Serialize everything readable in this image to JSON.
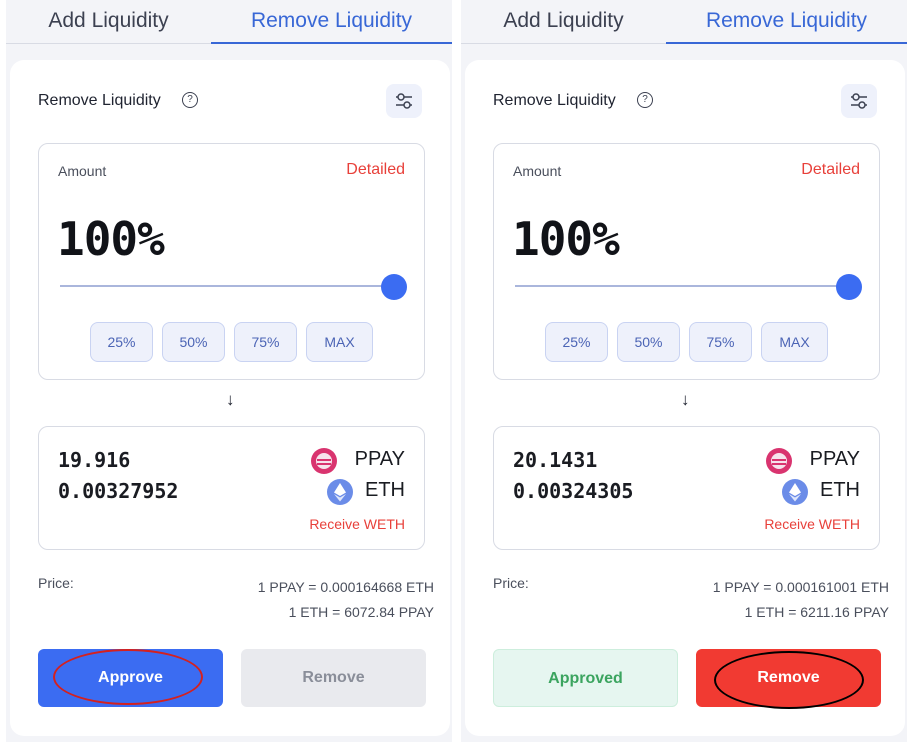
{
  "panels": [
    {
      "tabs": {
        "add": "Add Liquidity",
        "remove": "Remove Liquidity"
      },
      "title": "Remove Liquidity",
      "help_icon_glyph": "?",
      "amount": {
        "label": "Amount",
        "detailed": "Detailed",
        "percent": "100%",
        "slider_value": 1.0,
        "presets": [
          "25%",
          "50%",
          "75%",
          "MAX"
        ]
      },
      "arrow": "↓",
      "receive": {
        "amount_1": "19.916",
        "token_1": "PPAY",
        "amount_2": "0.00327952",
        "token_2": "ETH",
        "receive_weth": "Receive WETH"
      },
      "price": {
        "label": "Price:",
        "line_1": "1 PPAY = 0.000164668 ETH",
        "line_2": "1 ETH = 6072.84 PPAY"
      },
      "buttons": {
        "primary": "Approve",
        "secondary": "Remove"
      },
      "highlight_color": "#d4211f"
    },
    {
      "tabs": {
        "add": "Add Liquidity",
        "remove": "Remove Liquidity"
      },
      "title": "Remove Liquidity",
      "help_icon_glyph": "?",
      "amount": {
        "label": "Amount",
        "detailed": "Detailed",
        "percent": "100%",
        "slider_value": 1.0,
        "presets": [
          "25%",
          "50%",
          "75%",
          "MAX"
        ]
      },
      "arrow": "↓",
      "receive": {
        "amount_1": "20.1431",
        "token_1": "PPAY",
        "amount_2": "0.00324305",
        "token_2": "ETH",
        "receive_weth": "Receive WETH"
      },
      "price": {
        "label": "Price:",
        "line_1": "1 PPAY = 0.000161001 ETH",
        "line_2": "1 ETH = 6211.16 PPAY"
      },
      "buttons": {
        "primary": "Approved",
        "secondary": "Remove"
      },
      "highlight_color": "#000000"
    }
  ],
  "colors": {
    "accent_blue": "#3b6cf2",
    "tab_active": "#3867d6",
    "danger_red": "#e8403a",
    "remove_red": "#f13a32",
    "approved_green": "#3ba45f"
  },
  "icons": {
    "settings": "sliders-icon",
    "help": "question-circle-icon",
    "ppay": "ppay-token-icon",
    "eth": "eth-token-icon"
  }
}
